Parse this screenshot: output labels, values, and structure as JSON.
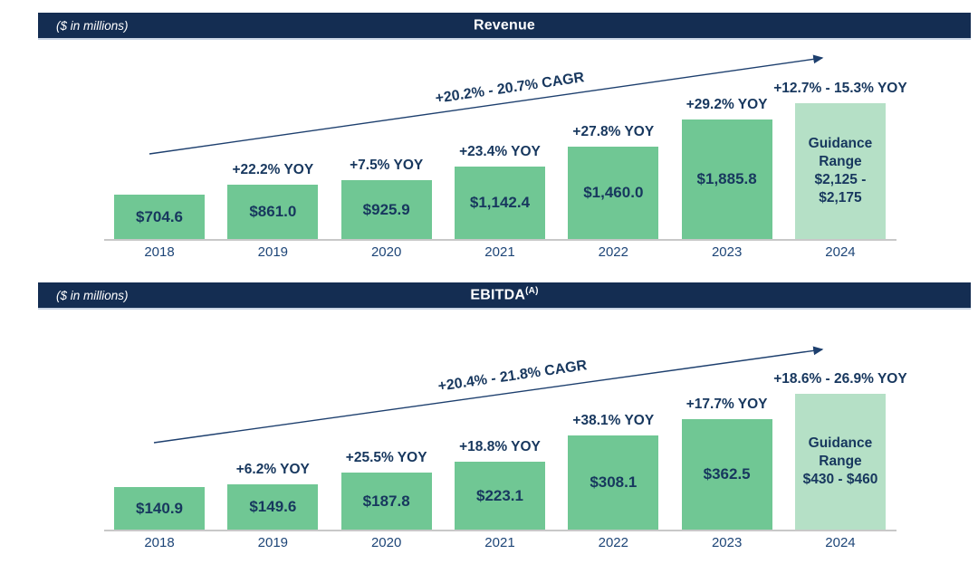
{
  "colors": {
    "header_bg": "#142d52",
    "header_text": "#ffffff",
    "bar_green": "#70c794",
    "bar_light_green": "#b5e0c6",
    "text_navy": "#17375e",
    "year_text": "#1d4577",
    "axis_line": "#c8c8c8",
    "arrow": "#1d3f6e"
  },
  "chart_data": [
    {
      "type": "bar",
      "title": "Revenue",
      "title_superscript": "",
      "units_note": "($ in millions)",
      "cagr_label": "+20.2% - 20.7% CAGR",
      "categories": [
        "2018",
        "2019",
        "2020",
        "2021",
        "2022",
        "2023",
        "2024"
      ],
      "values": [
        704.6,
        861.0,
        925.9,
        1142.4,
        1460.0,
        1885.8,
        2150
      ],
      "value_labels": [
        "$704.6",
        "$861.0",
        "$925.9",
        "$1,142.4",
        "$1,460.0",
        "$1,885.8",
        ""
      ],
      "yoy_labels": [
        "",
        "+22.2% YOY",
        "+7.5% YOY",
        "+23.4% YOY",
        "+27.8% YOY",
        "+29.2% YOY",
        "+12.7% - 15.3% YOY"
      ],
      "guidance_index": 6,
      "guidance_low": 2125,
      "guidance_high": 2175,
      "guidance_label": [
        "Guidance Range",
        "$2,125 - $2,175"
      ],
      "ylim": [
        0,
        2200
      ],
      "grid": false,
      "legend": "none"
    },
    {
      "type": "bar",
      "title": "EBITDA",
      "title_superscript": "(A)",
      "units_note": "($ in millions)",
      "cagr_label": "+20.4% - 21.8% CAGR",
      "categories": [
        "2018",
        "2019",
        "2020",
        "2021",
        "2022",
        "2023",
        "2024"
      ],
      "values": [
        140.9,
        149.6,
        187.8,
        223.1,
        308.1,
        362.5,
        445
      ],
      "value_labels": [
        "$140.9",
        "$149.6",
        "$187.8",
        "$223.1",
        "$308.1",
        "$362.5",
        ""
      ],
      "yoy_labels": [
        "",
        "+6.2% YOY",
        "+25.5% YOY",
        "+18.8% YOY",
        "+38.1% YOY",
        "+17.7% YOY",
        "+18.6% - 26.9% YOY"
      ],
      "guidance_index": 6,
      "guidance_low": 430,
      "guidance_high": 460,
      "guidance_label": [
        "Guidance Range",
        "$430 - $460"
      ],
      "ylim": [
        0,
        460
      ],
      "grid": false,
      "legend": "none"
    }
  ]
}
